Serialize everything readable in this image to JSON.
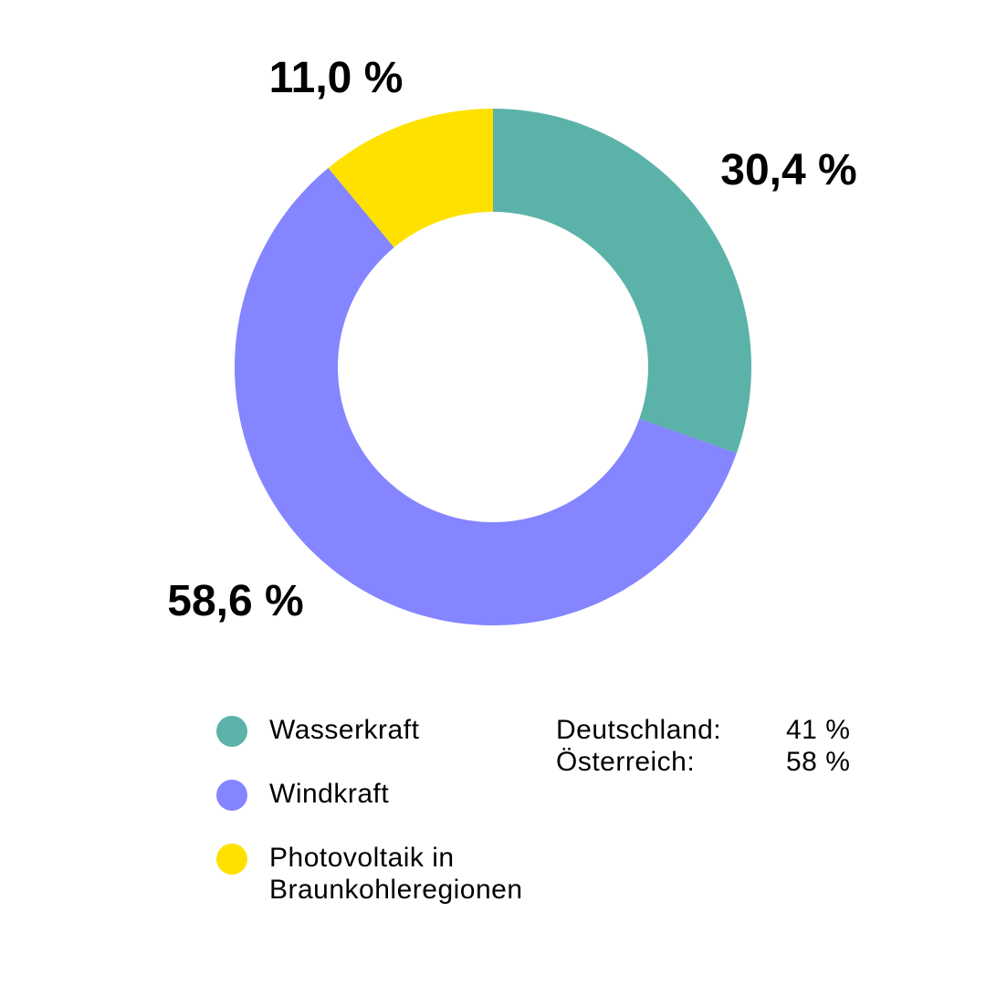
{
  "chart_data": {
    "type": "pie",
    "donut": true,
    "categories": [
      "Wasserkraft",
      "Windkraft",
      "Photovoltaik in Braunkohleregionen"
    ],
    "values": [
      30.4,
      58.6,
      11.0
    ],
    "value_labels": [
      "30,4 %",
      "58,6 %",
      "11,0 %"
    ],
    "colors": [
      "#5bb2a9",
      "#8485ff",
      "#ffe100"
    ],
    "legend_placement": "bottom-left",
    "title": ""
  },
  "legend": {
    "items": [
      {
        "label": "Wasserkraft",
        "color": "#5bb2a9"
      },
      {
        "label": "Windkraft",
        "color": "#8485ff"
      },
      {
        "label_line1": "Photovoltaik in",
        "label_line2": "Braunkohleregionen",
        "color": "#ffe100"
      }
    ]
  },
  "stats": {
    "rows": [
      {
        "label": "Deutschland:",
        "value": "41 %"
      },
      {
        "label": "Österreich:",
        "value": "58 %"
      }
    ]
  }
}
